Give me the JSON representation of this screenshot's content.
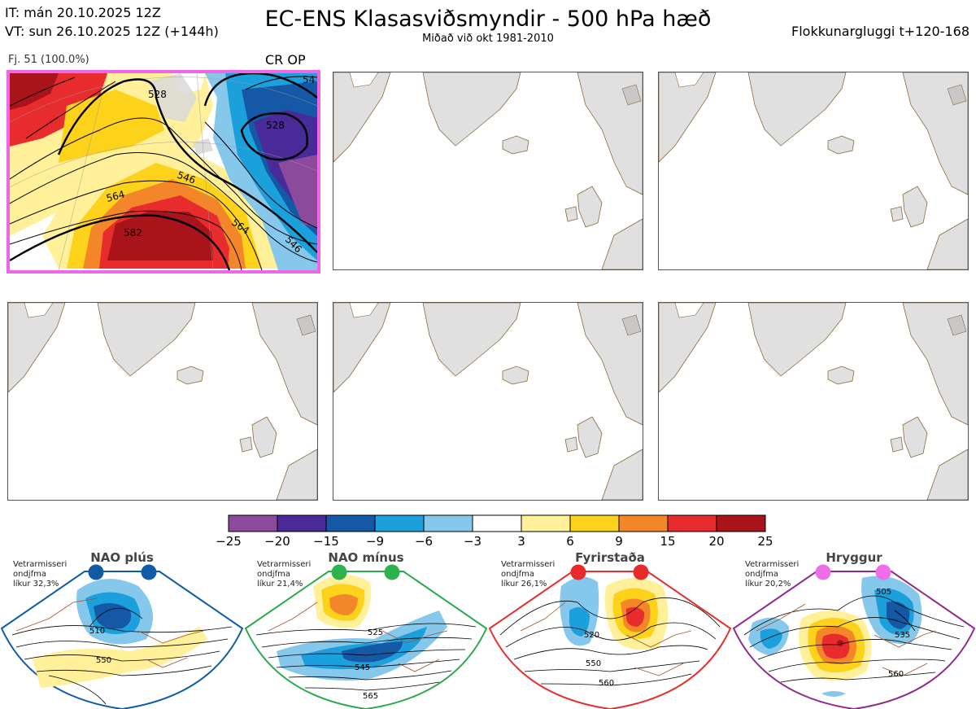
{
  "header": {
    "it": "IT: mán 20.10.2025 12Z",
    "vt": "VT: sun 26.10.2025 12Z  (+144h)",
    "title": "EC-ENS Klasasviðsmyndir - 500 hPa hæð",
    "subtitle": "Miðað við okt 1981-2010",
    "window": "Flokkunargluggi t+120-168"
  },
  "cluster1": {
    "label": "Fj. 51 (100.0%)",
    "tag": "CR OP",
    "contours": [
      "528",
      "528",
      "546",
      "564",
      "564",
      "582",
      "546",
      "54"
    ]
  },
  "colorbar": {
    "colors": [
      "#8c4a9c",
      "#4a2a98",
      "#1458a6",
      "#1ba0dc",
      "#85c8ec",
      "#ffffff",
      "#fff099",
      "#fdd21a",
      "#f4862a",
      "#e82c2e",
      "#a8141a"
    ],
    "ticks": [
      "−25",
      "−20",
      "−15",
      "−9",
      "−6",
      "−3",
      "3",
      "6",
      "9",
      "15",
      "20",
      "25"
    ]
  },
  "regimes": [
    {
      "name": "NAO plús",
      "text": [
        "Vetrarmisseri",
        "ondjfma",
        "líkur 32,3%"
      ],
      "color": "#0f5ba6",
      "dot": "#0f5ba6",
      "labels": [
        "510",
        "550"
      ]
    },
    {
      "name": "NAO mínus",
      "text": [
        "Vetrarmisseri",
        "ondjfma",
        "líkur 21,4%"
      ],
      "color": "#2da84a",
      "dot": "#2db34e",
      "labels": [
        "525",
        "545",
        "565"
      ]
    },
    {
      "name": "Fyrirstaða",
      "text": [
        "Vetrarmisseri",
        "ondjfma",
        "líkur 26,1%"
      ],
      "color": "#e5302e",
      "dot": "#e82a2a",
      "labels": [
        "520",
        "550",
        "560"
      ]
    },
    {
      "name": "Hryggur",
      "text": [
        "Vetrarmisseri",
        "ondjfma",
        "líkur 20,2%"
      ],
      "color": "#8e2b8c",
      "dot": "#ee6ee8",
      "labels": [
        "505",
        "535",
        "560"
      ]
    }
  ]
}
